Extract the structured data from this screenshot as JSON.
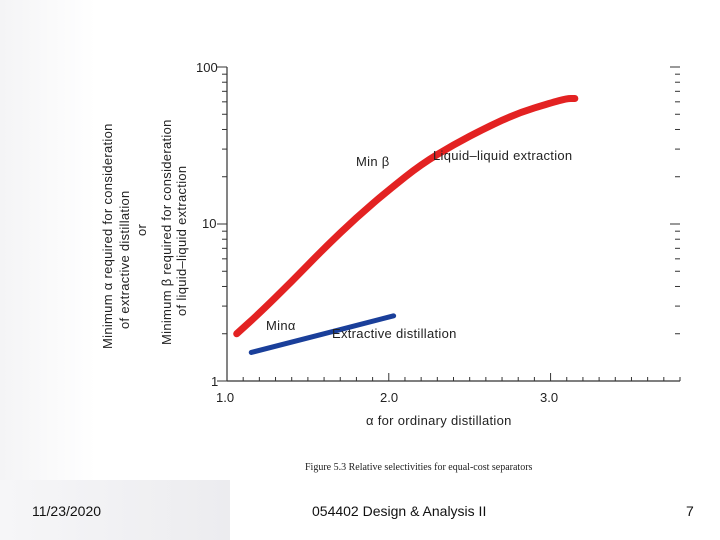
{
  "footer": {
    "date": "11/23/2020",
    "course": "054402 Design & Analysis II",
    "page_number": "7"
  },
  "chart_data": {
    "type": "line",
    "title": "",
    "caption": "Figure 5.3  Relative selectivities for equal-cost separators",
    "xlabel": "α for ordinary distillation",
    "ylabel_lines": [
      "Minimum α required for consideration",
      "of extractive distillation",
      "or",
      "Minimum β required for consideration",
      "of liquid–liquid extraction"
    ],
    "x_axis": {
      "scale": "linear",
      "range": [
        1.0,
        3.8
      ],
      "tick_labels": [
        "1.0",
        "2.0",
        "3.0"
      ],
      "ticks": [
        1.0,
        2.0,
        3.0
      ]
    },
    "y_axis": {
      "scale": "log",
      "range": [
        1,
        100
      ],
      "tick_labels": [
        "1",
        "10",
        "100"
      ],
      "ticks": [
        1,
        10,
        100
      ]
    },
    "series": [
      {
        "name": "Liquid–liquid extraction",
        "label": "Min β",
        "annotation": "Liquid–liquid extraction",
        "color": "#e32222",
        "x": [
          1.06,
          1.2,
          1.4,
          1.6,
          1.8,
          2.0,
          2.2,
          2.4,
          2.6,
          2.8,
          3.0,
          3.1,
          3.15
        ],
        "y": [
          2.0,
          2.7,
          4.3,
          7.0,
          11.0,
          16.5,
          24.0,
          32.0,
          41.0,
          51.0,
          59.0,
          63.0,
          63.0
        ]
      },
      {
        "name": "Extractive distillation",
        "label": "Minα",
        "annotation": "Extractive distillation",
        "color": "#1a3f9a",
        "x": [
          1.15,
          2.03
        ],
        "y": [
          1.52,
          2.6
        ]
      }
    ]
  }
}
